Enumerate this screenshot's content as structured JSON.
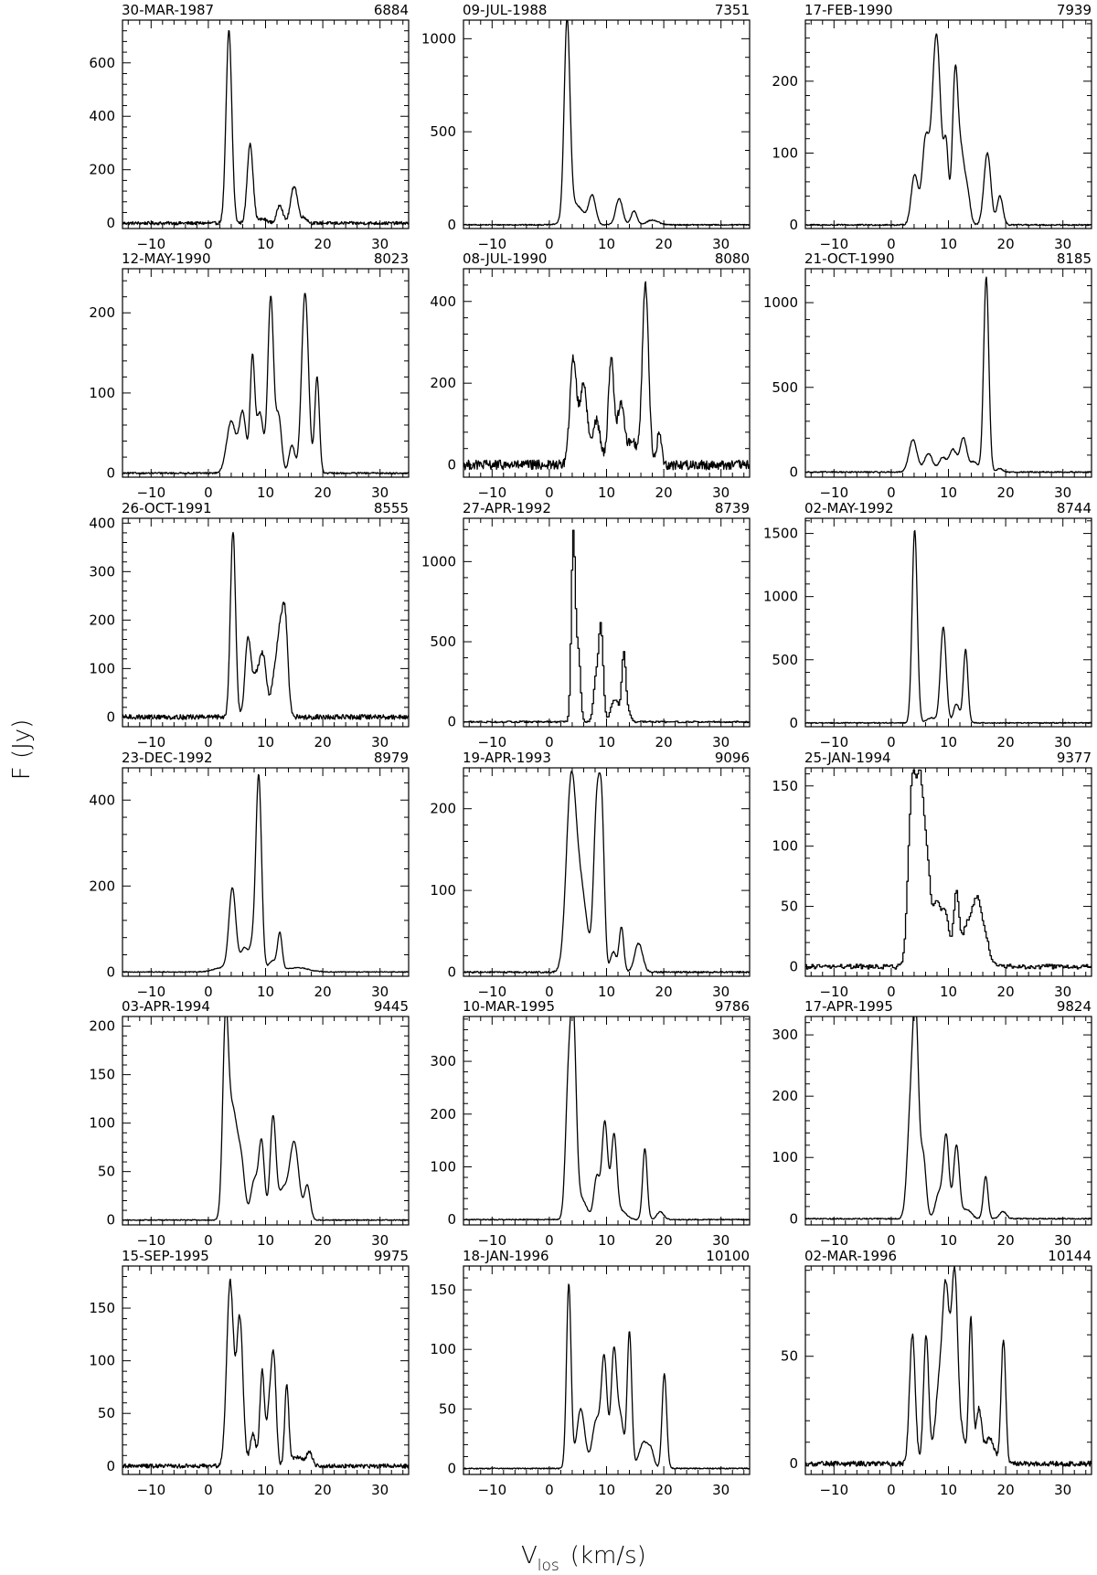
{
  "figure": {
    "ylabel": "F (Jy)",
    "xlabel_main": "V",
    "xlabel_sub": "los",
    "xlabel_unit": "(km/s)"
  },
  "chart_data": [
    {
      "type": "line",
      "date": "30-MAR-1987",
      "number": "6884",
      "xlim": [
        -15,
        35
      ],
      "ylim": [
        -20,
        760
      ],
      "xticks": [
        -10,
        0,
        10,
        20,
        30
      ],
      "yticks": [
        0,
        200,
        400,
        600
      ],
      "noise": 6,
      "step": false,
      "peaks": [
        [
          3.6,
          720,
          0.5
        ],
        [
          7.3,
          300,
          0.5
        ],
        [
          12.5,
          70,
          0.5
        ],
        [
          15.0,
          140,
          0.6
        ],
        [
          16.8,
          20,
          0.5
        ],
        [
          9.5,
          15,
          0.8
        ]
      ]
    },
    {
      "type": "line",
      "date": "09-JUL-1988",
      "number": "7351",
      "xlim": [
        -15,
        35
      ],
      "ylim": [
        -20,
        1100
      ],
      "xticks": [
        -10,
        0,
        10,
        20,
        30
      ],
      "yticks": [
        0,
        500,
        1000
      ],
      "noise": 3,
      "step": false,
      "peaks": [
        [
          3.1,
          1050,
          0.5
        ],
        [
          4.5,
          110,
          1.4
        ],
        [
          7.5,
          150,
          0.6
        ],
        [
          12.2,
          140,
          0.6
        ],
        [
          14.8,
          75,
          0.5
        ],
        [
          18.0,
          25,
          1.0
        ]
      ]
    },
    {
      "type": "line",
      "date": "17-FEB-1990",
      "number": "7939",
      "xlim": [
        -15,
        35
      ],
      "ylim": [
        -5,
        285
      ],
      "xticks": [
        -10,
        0,
        10,
        20,
        30
      ],
      "yticks": [
        0,
        100,
        200
      ],
      "noise": 1,
      "step": false,
      "peaks": [
        [
          4.1,
          70,
          0.6
        ],
        [
          6.0,
          115,
          0.6
        ],
        [
          7.9,
          265,
          0.75
        ],
        [
          9.6,
          100,
          0.4
        ],
        [
          11.2,
          215,
          0.5
        ],
        [
          12.3,
          85,
          0.5
        ],
        [
          13.3,
          45,
          0.5
        ],
        [
          16.8,
          100,
          0.6
        ],
        [
          19.0,
          40,
          0.5
        ]
      ]
    },
    {
      "type": "line",
      "date": "12-MAY-1990",
      "number": "8023",
      "xlim": [
        -15,
        35
      ],
      "ylim": [
        -5,
        255
      ],
      "xticks": [
        -10,
        0,
        10,
        20,
        30
      ],
      "yticks": [
        0,
        100,
        200
      ],
      "noise": 1,
      "step": false,
      "peaks": [
        [
          4.0,
          65,
          0.8
        ],
        [
          6.0,
          75,
          0.6
        ],
        [
          7.7,
          140,
          0.4
        ],
        [
          9.0,
          75,
          0.6
        ],
        [
          10.9,
          220,
          0.5
        ],
        [
          12.3,
          70,
          0.5
        ],
        [
          14.6,
          35,
          0.5
        ],
        [
          16.9,
          225,
          0.6
        ],
        [
          19.0,
          120,
          0.4
        ]
      ]
    },
    {
      "type": "line",
      "date": "08-JUL-1990",
      "number": "8080",
      "xlim": [
        -15,
        35
      ],
      "ylim": [
        -30,
        480
      ],
      "xticks": [
        -10,
        0,
        10,
        20,
        30
      ],
      "yticks": [
        0,
        200,
        400
      ],
      "noise": 12,
      "step": false,
      "peaks": [
        [
          4.2,
          260,
          0.6
        ],
        [
          6.0,
          200,
          0.6
        ],
        [
          8.2,
          110,
          0.7
        ],
        [
          10.8,
          260,
          0.5
        ],
        [
          12.5,
          150,
          0.6
        ],
        [
          14.5,
          60,
          0.8
        ],
        [
          16.8,
          445,
          0.55
        ],
        [
          19.2,
          80,
          0.4
        ]
      ]
    },
    {
      "type": "line",
      "date": "21-OCT-1990",
      "number": "8185",
      "xlim": [
        -15,
        35
      ],
      "ylim": [
        -30,
        1200
      ],
      "xticks": [
        -10,
        0,
        10,
        20,
        30
      ],
      "yticks": [
        0,
        500,
        1000
      ],
      "noise": 4,
      "step": false,
      "peaks": [
        [
          3.8,
          190,
          0.7
        ],
        [
          6.5,
          110,
          0.7
        ],
        [
          9.0,
          85,
          0.7
        ],
        [
          10.8,
          130,
          0.6
        ],
        [
          12.6,
          200,
          0.6
        ],
        [
          14.5,
          60,
          0.7
        ],
        [
          16.6,
          1150,
          0.45
        ],
        [
          19.0,
          20,
          0.5
        ]
      ]
    },
    {
      "type": "line",
      "date": "26-OCT-1991",
      "number": "8555",
      "xlim": [
        -15,
        35
      ],
      "ylim": [
        -20,
        410
      ],
      "xticks": [
        -10,
        0,
        10,
        20,
        30
      ],
      "yticks": [
        0,
        100,
        200,
        300,
        400
      ],
      "noise": 5,
      "step": false,
      "peaks": [
        [
          4.3,
          385,
          0.45
        ],
        [
          6.9,
          155,
          0.5
        ],
        [
          8.3,
          80,
          0.7
        ],
        [
          9.6,
          115,
          0.6
        ],
        [
          11.6,
          80,
          0.6
        ],
        [
          12.5,
          130,
          0.5
        ],
        [
          13.4,
          200,
          0.5
        ]
      ]
    },
    {
      "type": "line",
      "date": "27-APR-1992",
      "number": "8739",
      "xlim": [
        -15,
        35
      ],
      "ylim": [
        -30,
        1270
      ],
      "xticks": [
        -10,
        0,
        10,
        20,
        30
      ],
      "yticks": [
        0,
        500,
        1000
      ],
      "noise": 5,
      "step": true,
      "peaks": [
        [
          4.1,
          1180,
          0.35
        ],
        [
          5.0,
          420,
          0.35
        ],
        [
          8.9,
          600,
          0.4
        ],
        [
          8.0,
          250,
          0.4
        ],
        [
          11.0,
          110,
          0.5
        ],
        [
          11.8,
          90,
          0.4
        ],
        [
          12.9,
          430,
          0.35
        ],
        [
          13.7,
          60,
          0.4
        ]
      ]
    },
    {
      "type": "line",
      "date": "02-MAY-1992",
      "number": "8744",
      "xlim": [
        -15,
        35
      ],
      "ylim": [
        -30,
        1620
      ],
      "xticks": [
        -10,
        0,
        10,
        20,
        30
      ],
      "yticks": [
        0,
        500,
        1000,
        1500
      ],
      "noise": 4,
      "step": false,
      "peaks": [
        [
          4.1,
          1530,
          0.45
        ],
        [
          9.1,
          760,
          0.5
        ],
        [
          11.4,
          150,
          0.5
        ],
        [
          13.0,
          580,
          0.4
        ],
        [
          7.0,
          40,
          0.8
        ]
      ]
    },
    {
      "type": "line",
      "date": "23-DEC-1992",
      "number": "8979",
      "xlim": [
        -15,
        35
      ],
      "ylim": [
        -10,
        475
      ],
      "xticks": [
        -10,
        0,
        10,
        20,
        30
      ],
      "yticks": [
        0,
        200,
        400
      ],
      "noise": 1,
      "step": false,
      "peaks": [
        [
          4.2,
          190,
          0.6
        ],
        [
          6.3,
          55,
          0.7
        ],
        [
          8.8,
          455,
          0.5
        ],
        [
          7.7,
          50,
          0.5
        ],
        [
          11.2,
          25,
          0.7
        ],
        [
          12.5,
          85,
          0.4
        ],
        [
          2.5,
          10,
          1.5
        ],
        [
          15.5,
          10,
          2.0
        ]
      ]
    },
    {
      "type": "line",
      "date": "19-APR-1993",
      "number": "9096",
      "xlim": [
        -15,
        35
      ],
      "ylim": [
        -5,
        250
      ],
      "xticks": [
        -10,
        0,
        10,
        20,
        30
      ],
      "yticks": [
        0,
        100,
        200
      ],
      "noise": 1,
      "step": false,
      "peaks": [
        [
          3.8,
          225,
          0.85
        ],
        [
          5.6,
          95,
          1.0
        ],
        [
          8.3,
          200,
          0.55
        ],
        [
          9.2,
          165,
          0.45
        ],
        [
          11.2,
          25,
          0.5
        ],
        [
          12.6,
          55,
          0.4
        ],
        [
          15.6,
          35,
          0.7
        ]
      ]
    },
    {
      "type": "line",
      "date": "25-JAN-1994",
      "number": "9377",
      "xlim": [
        -15,
        35
      ],
      "ylim": [
        -8,
        165
      ],
      "xticks": [
        -10,
        0,
        10,
        20,
        30
      ],
      "yticks": [
        0,
        50,
        100,
        150
      ],
      "noise": 2,
      "step": true,
      "peaks": [
        [
          3.6,
          150,
          0.7
        ],
        [
          5.0,
          130,
          0.6
        ],
        [
          6.2,
          80,
          0.6
        ],
        [
          7.8,
          50,
          0.6
        ],
        [
          9.3,
          45,
          0.7
        ],
        [
          11.3,
          60,
          0.5
        ],
        [
          13.0,
          30,
          0.7
        ],
        [
          14.7,
          52,
          0.8
        ],
        [
          16.2,
          25,
          0.8
        ]
      ]
    },
    {
      "type": "line",
      "date": "03-APR-1994",
      "number": "9445",
      "xlim": [
        -15,
        35
      ],
      "ylim": [
        -5,
        210
      ],
      "xticks": [
        -10,
        0,
        10,
        20,
        30
      ],
      "yticks": [
        0,
        50,
        100,
        150,
        200
      ],
      "noise": 0.5,
      "step": false,
      "peaks": [
        [
          3.0,
          190,
          0.5
        ],
        [
          4.3,
          110,
          0.8
        ],
        [
          5.8,
          50,
          0.6
        ],
        [
          8.0,
          40,
          0.6
        ],
        [
          9.3,
          80,
          0.5
        ],
        [
          11.3,
          105,
          0.5
        ],
        [
          13.0,
          30,
          0.8
        ],
        [
          15.0,
          80,
          0.8
        ],
        [
          17.3,
          35,
          0.5
        ]
      ]
    },
    {
      "type": "line",
      "date": "10-MAR-1995",
      "number": "9786",
      "xlim": [
        -15,
        35
      ],
      "ylim": [
        -10,
        385
      ],
      "xticks": [
        -10,
        0,
        10,
        20,
        30
      ],
      "yticks": [
        0,
        100,
        200,
        300
      ],
      "noise": 1,
      "step": false,
      "peaks": [
        [
          3.3,
          230,
          0.5
        ],
        [
          4.2,
          350,
          0.5
        ],
        [
          5.5,
          40,
          1.0
        ],
        [
          8.3,
          80,
          0.5
        ],
        [
          9.7,
          185,
          0.5
        ],
        [
          11.3,
          160,
          0.5
        ],
        [
          12.8,
          15,
          0.8
        ],
        [
          16.7,
          135,
          0.4
        ],
        [
          19.4,
          15,
          0.6
        ]
      ]
    },
    {
      "type": "line",
      "date": "17-APR-1995",
      "number": "9824",
      "xlim": [
        -15,
        35
      ],
      "ylim": [
        -10,
        330
      ],
      "xticks": [
        -10,
        0,
        10,
        20,
        30
      ],
      "yticks": [
        0,
        100,
        200,
        300
      ],
      "noise": 1,
      "step": false,
      "peaks": [
        [
          3.4,
          170,
          0.6
        ],
        [
          4.3,
          300,
          0.5
        ],
        [
          5.6,
          100,
          0.5
        ],
        [
          8.3,
          40,
          0.6
        ],
        [
          9.6,
          135,
          0.5
        ],
        [
          11.4,
          120,
          0.5
        ],
        [
          13.2,
          15,
          0.8
        ],
        [
          16.5,
          70,
          0.4
        ],
        [
          19.5,
          12,
          0.6
        ]
      ]
    },
    {
      "type": "line",
      "date": "15-SEP-1995",
      "number": "9975",
      "xlim": [
        -15,
        35
      ],
      "ylim": [
        -8,
        190
      ],
      "xticks": [
        -10,
        0,
        10,
        20,
        30
      ],
      "yticks": [
        0,
        50,
        100,
        150
      ],
      "noise": 2,
      "step": false,
      "peaks": [
        [
          3.8,
          175,
          0.6
        ],
        [
          5.5,
          140,
          0.55
        ],
        [
          7.8,
          30,
          0.5
        ],
        [
          9.4,
          90,
          0.4
        ],
        [
          10.8,
          65,
          0.5
        ],
        [
          11.5,
          80,
          0.4
        ],
        [
          13.7,
          75,
          0.35
        ],
        [
          17.7,
          12,
          0.5
        ],
        [
          15.5,
          8,
          1.2
        ]
      ]
    },
    {
      "type": "line",
      "date": "18-JAN-1996",
      "number": "10100",
      "xlim": [
        -15,
        35
      ],
      "ylim": [
        -5,
        170
      ],
      "xticks": [
        -10,
        0,
        10,
        20,
        30
      ],
      "yticks": [
        0,
        50,
        100,
        150
      ],
      "noise": 0.5,
      "step": false,
      "peaks": [
        [
          3.4,
          155,
          0.4
        ],
        [
          5.5,
          50,
          0.7
        ],
        [
          8.2,
          40,
          0.7
        ],
        [
          9.6,
          90,
          0.5
        ],
        [
          11.3,
          100,
          0.5
        ],
        [
          12.5,
          40,
          0.5
        ],
        [
          14.0,
          115,
          0.4
        ],
        [
          16.5,
          22,
          0.8
        ],
        [
          17.8,
          12,
          0.5
        ],
        [
          20.1,
          80,
          0.4
        ]
      ]
    },
    {
      "type": "line",
      "date": "02-MAR-1996",
      "number": "10144",
      "xlim": [
        -15,
        35
      ],
      "ylim": [
        -5,
        92
      ],
      "xticks": [
        -10,
        0,
        10,
        20,
        30
      ],
      "yticks": [
        0,
        50
      ],
      "noise": 1.2,
      "step": false,
      "peaks": [
        [
          3.7,
          60,
          0.5
        ],
        [
          6.1,
          60,
          0.45
        ],
        [
          8.4,
          35,
          0.7
        ],
        [
          9.6,
          75,
          0.6
        ],
        [
          11.1,
          88,
          0.55
        ],
        [
          12.5,
          12,
          0.5
        ],
        [
          13.9,
          68,
          0.35
        ],
        [
          15.3,
          25,
          0.5
        ],
        [
          17.2,
          12,
          0.8
        ],
        [
          19.6,
          58,
          0.4
        ]
      ]
    }
  ]
}
